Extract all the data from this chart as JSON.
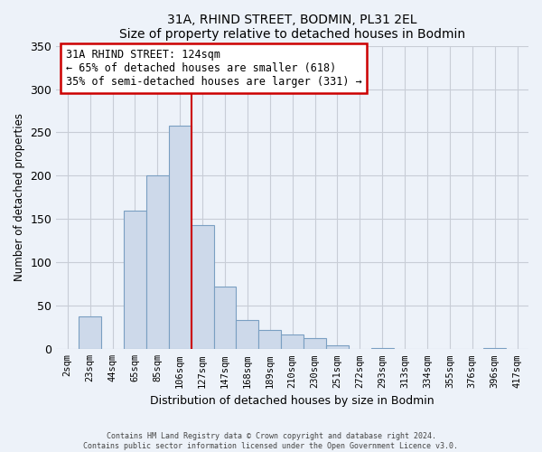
{
  "title": "31A, RHIND STREET, BODMIN, PL31 2EL",
  "subtitle": "Size of property relative to detached houses in Bodmin",
  "xlabel": "Distribution of detached houses by size in Bodmin",
  "ylabel": "Number of detached properties",
  "bar_labels": [
    "2sqm",
    "23sqm",
    "44sqm",
    "65sqm",
    "85sqm",
    "106sqm",
    "127sqm",
    "147sqm",
    "168sqm",
    "189sqm",
    "210sqm",
    "230sqm",
    "251sqm",
    "272sqm",
    "293sqm",
    "313sqm",
    "334sqm",
    "355sqm",
    "376sqm",
    "396sqm",
    "417sqm"
  ],
  "bar_values": [
    0,
    38,
    0,
    160,
    200,
    258,
    143,
    72,
    34,
    22,
    17,
    13,
    5,
    0,
    1,
    0,
    0,
    0,
    0,
    1,
    0
  ],
  "bar_color": "#cdd9ea",
  "bar_edge_color": "#7a9fc2",
  "vline_color": "#cc0000",
  "vline_x_index": 6,
  "annotation_title": "31A RHIND STREET: 124sqm",
  "annotation_line1": "← 65% of detached houses are smaller (618)",
  "annotation_line2": "35% of semi-detached houses are larger (331) →",
  "annotation_box_color": "#ffffff",
  "annotation_box_edge": "#cc0000",
  "ylim": [
    0,
    350
  ],
  "yticks": [
    0,
    50,
    100,
    150,
    200,
    250,
    300,
    350
  ],
  "footer1": "Contains HM Land Registry data © Crown copyright and database right 2024.",
  "footer2": "Contains public sector information licensed under the Open Government Licence v3.0.",
  "bg_color": "#edf2f9",
  "plot_bg_color": "#edf2f9",
  "grid_color": "#c8cdd6"
}
